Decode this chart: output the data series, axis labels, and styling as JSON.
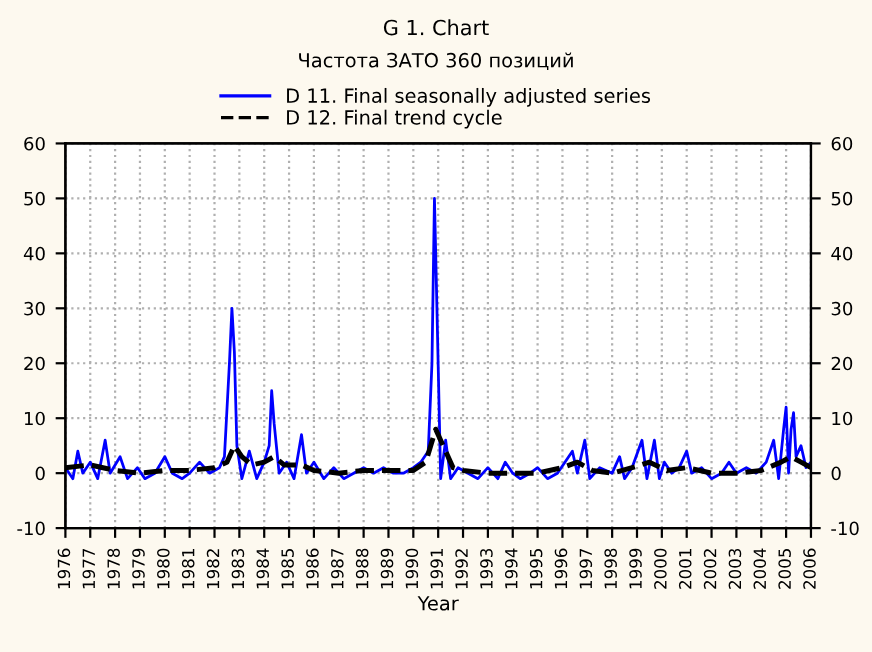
{
  "chart_data": {
    "type": "line",
    "title": "G 1. Chart",
    "subtitle": "Частота ЗАТО 360 позиций",
    "xlabel": "Year",
    "xlim": [
      1976,
      2006
    ],
    "xticks": [
      1976,
      1977,
      1978,
      1979,
      1980,
      1981,
      1982,
      1983,
      1984,
      1985,
      1986,
      1987,
      1988,
      1989,
      1990,
      1991,
      1992,
      1993,
      1994,
      1995,
      1996,
      1997,
      1998,
      1999,
      2000,
      2001,
      2002,
      2003,
      2004,
      2005,
      2006
    ],
    "ylim": [
      -10,
      60
    ],
    "yticks": [
      -10,
      0,
      10,
      20,
      30,
      40,
      50,
      60
    ],
    "y2lim": [
      -10,
      60
    ],
    "y2ticks": [
      -10,
      0,
      10,
      20,
      30,
      40,
      50,
      60
    ],
    "grid": true,
    "legend": "top",
    "series": [
      {
        "name": "D 11. Final seasonally adjusted series",
        "color": "#0000ff",
        "line_style": "solid",
        "x": [
          1976.0,
          1976.3,
          1976.5,
          1976.7,
          1977.0,
          1977.3,
          1977.6,
          1977.8,
          1978.2,
          1978.5,
          1978.9,
          1979.2,
          1979.6,
          1980.0,
          1980.3,
          1980.7,
          1981.0,
          1981.4,
          1981.8,
          1982.2,
          1982.4,
          1982.6,
          1982.7,
          1982.8,
          1982.9,
          1983.1,
          1983.4,
          1983.7,
          1984.0,
          1984.2,
          1984.3,
          1984.4,
          1984.6,
          1984.9,
          1985.2,
          1985.5,
          1985.7,
          1986.0,
          1986.4,
          1986.8,
          1987.2,
          1987.6,
          1988.0,
          1988.4,
          1988.8,
          1989.2,
          1989.6,
          1990.0,
          1990.3,
          1990.6,
          1990.75,
          1990.85,
          1990.95,
          1991.1,
          1991.3,
          1991.5,
          1991.8,
          1992.2,
          1992.6,
          1993.0,
          1993.4,
          1993.7,
          1994.0,
          1994.3,
          1994.7,
          1995.0,
          1995.4,
          1995.8,
          1996.1,
          1996.4,
          1996.6,
          1996.9,
          1997.1,
          1997.5,
          1998.0,
          1998.3,
          1998.5,
          1998.8,
          1999.2,
          1999.4,
          1999.7,
          1999.9,
          2000.1,
          2000.4,
          2000.7,
          2001.0,
          2001.2,
          2001.6,
          2002.0,
          2002.4,
          2002.7,
          2003.0,
          2003.4,
          2003.8,
          2004.2,
          2004.5,
          2004.7,
          2004.9,
          2005.0,
          2005.1,
          2005.2,
          2005.3,
          2005.4,
          2005.6,
          2005.8,
          2006.0
        ],
        "values": [
          1,
          -1,
          4,
          0,
          2,
          -1,
          6,
          0,
          3,
          -1,
          1,
          -1,
          0,
          3,
          0,
          -1,
          0,
          2,
          0,
          1,
          3,
          20,
          30,
          22,
          5,
          -1,
          4,
          -1,
          2,
          5,
          15,
          9,
          0,
          2,
          -1,
          7,
          0,
          2,
          -1,
          1,
          -1,
          0,
          1,
          0,
          1,
          0,
          0,
          1,
          2,
          4,
          20,
          50,
          30,
          -1,
          6,
          -1,
          1,
          0,
          -1,
          1,
          -1,
          2,
          0,
          -1,
          0,
          1,
          -1,
          0,
          2,
          4,
          0,
          6,
          -1,
          1,
          0,
          3,
          -1,
          1,
          6,
          -1,
          6,
          -1,
          2,
          0,
          1,
          4,
          0,
          1,
          -1,
          0,
          2,
          0,
          1,
          0,
          2,
          6,
          -1,
          8,
          12,
          0,
          8,
          11,
          3,
          5,
          1,
          2
        ]
      },
      {
        "name": "D 12. Final trend cycle",
        "color": "#000000",
        "line_style": "dashed",
        "x": [
          1976,
          1977,
          1978,
          1979,
          1980,
          1981,
          1982,
          1982.5,
          1982.8,
          1983.1,
          1983.5,
          1984,
          1984.4,
          1984.8,
          1985.5,
          1986,
          1987,
          1988,
          1989,
          1990,
          1990.5,
          1990.9,
          1991.2,
          1991.6,
          1992,
          1993,
          1994,
          1995,
          1996,
          1996.6,
          1997.2,
          1998,
          1998.8,
          1999.5,
          2000.2,
          2001,
          2002,
          2003,
          2004,
          2004.8,
          2005.2,
          2005.6,
          2006
        ],
        "values": [
          1,
          1.5,
          0.5,
          0,
          0.5,
          0.5,
          1,
          2,
          5,
          3,
          1.5,
          2,
          3,
          1.5,
          1.5,
          0.5,
          0,
          0.5,
          0.5,
          0.5,
          2,
          8,
          5,
          1,
          0.5,
          0,
          0,
          0,
          1,
          2,
          0.5,
          0,
          1,
          2,
          0.5,
          1,
          0,
          0,
          0.5,
          2,
          3,
          2,
          1
        ]
      }
    ]
  }
}
